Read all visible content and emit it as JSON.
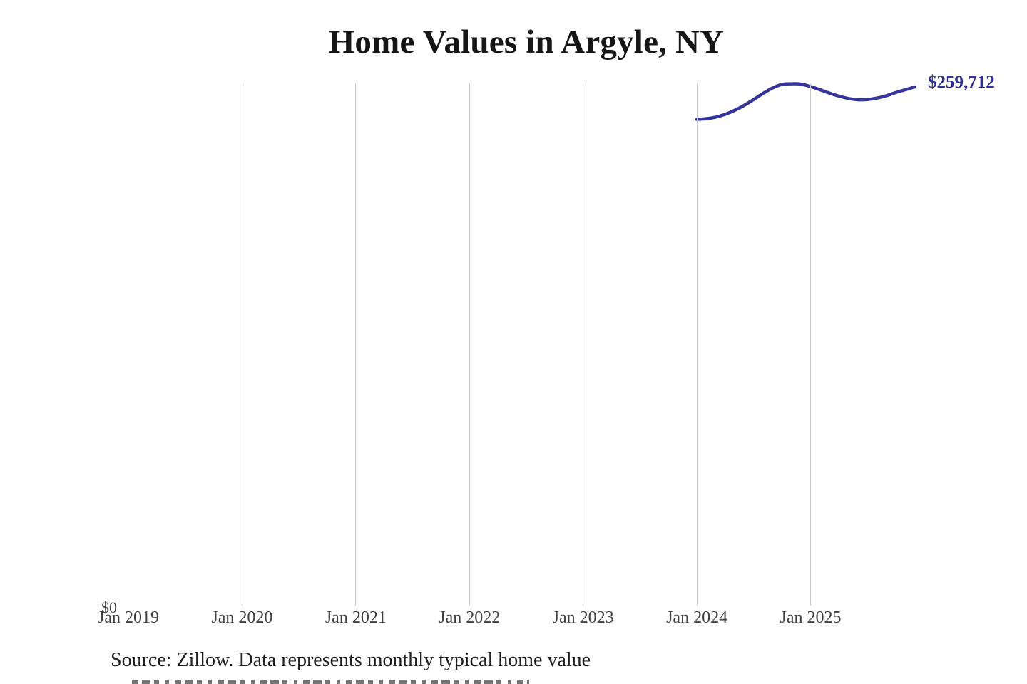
{
  "chart": {
    "title": "Home Values in Argyle, NY",
    "end_label": "$259,712",
    "y_zero_label": "$0"
  },
  "chart_data": {
    "type": "line",
    "title": "Home Values in Argyle, NY",
    "series_name": "Monthly typical home value (USD)",
    "x": [
      "Jan 2024",
      "Feb 2024",
      "Mar 2024",
      "Apr 2024",
      "May 2024",
      "Jun 2024",
      "Jul 2024",
      "Aug 2024",
      "Sep 2024",
      "Oct 2024",
      "Nov 2024",
      "Dec 2024",
      "Jan 2025",
      "Feb 2025",
      "Mar 2025",
      "Apr 2025",
      "May 2025",
      "Jun 2025",
      "Jul 2025",
      "Aug 2025",
      "Sep 2025",
      "Oct 2025",
      "Nov 2025",
      "Dec 2025"
    ],
    "values": [
      243500,
      243800,
      244600,
      246000,
      248000,
      250500,
      253400,
      256500,
      259200,
      261000,
      261300,
      261100,
      259900,
      258300,
      256600,
      255100,
      253900,
      253300,
      253400,
      254100,
      255300,
      256900,
      258300,
      259712
    ],
    "latest_value": 259712,
    "end_label": "$259,712",
    "x_ticks": [
      {
        "label": "Jan 2019",
        "gridline": false
      },
      {
        "label": "Jan 2020",
        "gridline": true
      },
      {
        "label": "Jan 2021",
        "gridline": true
      },
      {
        "label": "Jan 2022",
        "gridline": true
      },
      {
        "label": "Jan 2023",
        "gridline": true
      },
      {
        "label": "Jan 2024",
        "gridline": true
      },
      {
        "label": "Jan 2025",
        "gridline": true
      }
    ],
    "y_tick_labels": [
      "$0"
    ],
    "ylim": [
      0,
      261500
    ],
    "grid": "vertical-only",
    "legend": "none",
    "line_color": "#36359b"
  },
  "colors": {
    "line": "#36359b",
    "end_label": "#2d3191",
    "grid": "#c9c9c9",
    "tick_text": "#3f3f3f",
    "title_text": "#161616",
    "source_text": "#1f1f1f"
  },
  "footer": {
    "source": "Source: Zillow. Data represents monthly typical home value"
  }
}
